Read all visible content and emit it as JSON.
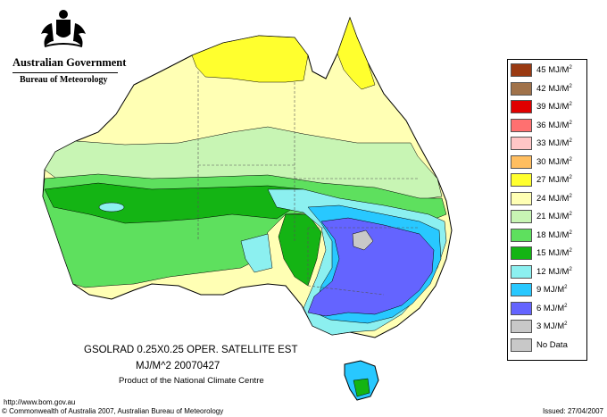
{
  "header": {
    "government": "Australian Government",
    "bureau": "Bureau of Meteorology"
  },
  "legend": {
    "items": [
      {
        "label": "45 MJ/M",
        "sup": "2",
        "color": "#9a3a12"
      },
      {
        "label": "42 MJ/M",
        "sup": "2",
        "color": "#a0724a"
      },
      {
        "label": "39 MJ/M",
        "sup": "2",
        "color": "#e00000"
      },
      {
        "label": "36 MJ/M",
        "sup": "2",
        "color": "#ff7070"
      },
      {
        "label": "33 MJ/M",
        "sup": "2",
        "color": "#ffc6c6"
      },
      {
        "label": "30 MJ/M",
        "sup": "2",
        "color": "#ffbe60"
      },
      {
        "label": "27 MJ/M",
        "sup": "2",
        "color": "#ffff2e"
      },
      {
        "label": "24 MJ/M",
        "sup": "2",
        "color": "#ffffb4"
      },
      {
        "label": "21 MJ/M",
        "sup": "2",
        "color": "#c8f5b4"
      },
      {
        "label": "18 MJ/M",
        "sup": "2",
        "color": "#5ee05e"
      },
      {
        "label": "15 MJ/M",
        "sup": "2",
        "color": "#14b414"
      },
      {
        "label": "12 MJ/M",
        "sup": "2",
        "color": "#8cf0f0"
      },
      {
        "label": "9 MJ/M",
        "sup": "2",
        "color": "#28c8ff"
      },
      {
        "label": "6 MJ/M",
        "sup": "2",
        "color": "#6464ff"
      },
      {
        "label": "3 MJ/M",
        "sup": "2",
        "color": "#c8c8c8"
      },
      {
        "label": "No Data",
        "sup": "",
        "color": "#c8c8c8"
      }
    ]
  },
  "caption": {
    "line1": "GSOLRAD    0.25X0.25 OPER. SATELLITE EST",
    "line2": "MJ/M^2  20070427",
    "line3": "Product of the National Climate Centre"
  },
  "footer": {
    "url": "http://www.bom.gov.au",
    "copyright": "© Commonwealth of Australia 2007, Australian Bureau of Meteorology",
    "issued": "Issued: 27/04/2007"
  },
  "map_colors": {
    "yellow": "#ffff2e",
    "pale_yellow": "#ffffb4",
    "light_green": "#c8f5b4",
    "green": "#5ee05e",
    "dark_green": "#14b414",
    "cyan": "#8cf0f0",
    "blue": "#28c8ff",
    "violet": "#6464ff",
    "grey": "#c8c8c8"
  }
}
